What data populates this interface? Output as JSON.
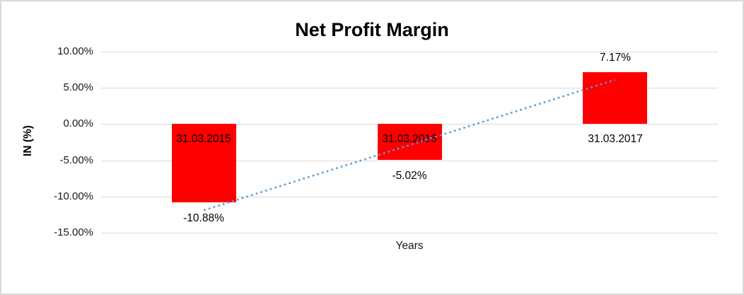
{
  "chart_data": {
    "type": "bar",
    "title": "Net Profit Margin",
    "xlabel": "Years",
    "ylabel": "IN (%)",
    "categories": [
      "31.03.2015",
      "31.03.2016",
      "31.03.2017"
    ],
    "values": [
      -10.88,
      -5.02,
      7.17
    ],
    "data_labels": [
      "-10.88%",
      "-5.02%",
      "7.17%"
    ],
    "ylim": [
      -15,
      10
    ],
    "yticks": [
      {
        "label": "10.00%",
        "value": 10
      },
      {
        "label": "5.00%",
        "value": 5
      },
      {
        "label": "0.00%",
        "value": 0
      },
      {
        "label": "-5.00%",
        "value": -5
      },
      {
        "label": "-10.00%",
        "value": -10
      },
      {
        "label": "-15.00%",
        "value": -15
      }
    ],
    "grid": true,
    "legend_position": "none",
    "bar_color": "#FF0000",
    "gridline_color": "#D9D9D9",
    "frame_border_color": "#D9D9D9",
    "trendline": {
      "type": "linear",
      "style": "dotted",
      "color": "#5B9BD5",
      "start_value": -11.9,
      "end_value": 6.1
    }
  }
}
